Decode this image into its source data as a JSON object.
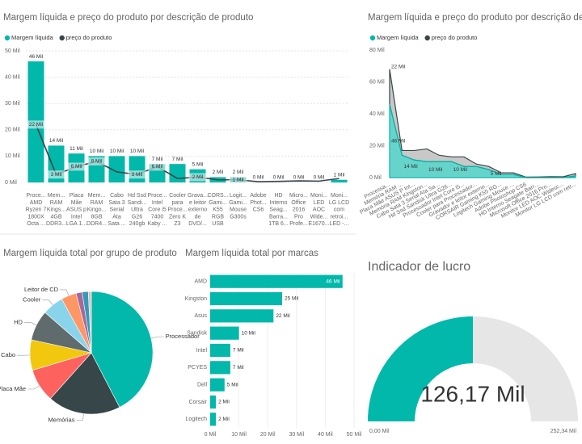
{
  "chart_data": [
    {
      "type": "bar",
      "title": "Margem líquida e preço do produto por descrição de produto",
      "legend": true,
      "grid": true,
      "categories": [
        "Proce...\nAMD\nRyzen 7\n1800X\nOcta ...",
        "Mem...\nRAM\nKings...\n4GB\nDDR3...",
        "Placa\nMãe\nASUS p\nIntel\nLGA 1...",
        "Mem...\nRAM\nKingo...\n8GB\nDDR4...",
        "Cabo\nSata 3\nSerial\nAta\nSata ...",
        "Hd Ssd\nSandi...\nUltra\nG26\n240gb",
        "Proce...\nIntel\nCore i5\n7400\nKaby ...",
        "Cooler\npara\nProce...\nZero K\nZ3",
        "Grava...\ne leitor\nexterno\nde\nDVD/...",
        "CORS...\nGami...\nK55\nRGB\nUSB",
        "Logit...\nGami...\nMouse\nG300s",
        "Adobe\nPhot...\nCS6",
        "HD\nInterno\nSeag...\nBarra...\n1TB 6...",
        "Micro...\nOffice\n2016\nPro\nProfe...",
        "Moni...\nLED\nAOC\nWide...\nE1670...",
        "Moni...\nLG LCD\ncom\nretroi...\nLED -..."
      ],
      "series": [
        {
          "name": "Margem líquida",
          "color": "#01B8AA",
          "values": [
            46000,
            14000,
            11000,
            10000,
            10000,
            10000,
            7000,
            7000,
            5000,
            2000,
            2000,
            0,
            0,
            0,
            0,
            1000
          ],
          "value_labels": [
            "46 Mil",
            "14 Mil",
            "11 Mil",
            "10 Mil",
            "10 Mil",
            "10 Mil",
            "7 Mil",
            "7 Mil",
            "5 Mil",
            "2 Mil",
            "2 Mil",
            "0 Mil",
            "0 Mil",
            "0 Mil",
            "0 Mil",
            "1 Mil"
          ]
        },
        {
          "name": "preço do produto",
          "color": "#374649",
          "type": "line",
          "values": [
            22000,
            3000,
            6000,
            8000,
            4000,
            3000,
            6000,
            1500,
            2000,
            1000,
            1000,
            300,
            400,
            600,
            500,
            1500
          ],
          "value_labels": [
            "22 Mil",
            "3 Mil",
            "6 Mil",
            "8 Mil",
            null,
            "3 Mil",
            "6 Mil",
            null,
            "2 Mil",
            null,
            "1 Mil",
            null,
            null,
            null,
            null,
            null
          ]
        }
      ],
      "ylim": [
        0,
        50000
      ],
      "yticks": [
        {
          "value": 0,
          "label": "0 Mil"
        },
        {
          "value": 10000,
          "label": "10 Mil"
        },
        {
          "value": 20000,
          "label": "20 Mil"
        },
        {
          "value": 30000,
          "label": "30 Mil"
        },
        {
          "value": 40000,
          "label": "40 Mil"
        },
        {
          "value": 50000,
          "label": "50 Mil"
        }
      ]
    },
    {
      "type": "area",
      "stacked": true,
      "title": "Margem líquida e preço do produto por descrição de produto",
      "legend": true,
      "categories": [
        "Processa...",
        "Memória RAM ...",
        "Placa Mãe ASUS P Int...",
        "Memória RAM Kingston...",
        "Cabo Sata 3 Serial Ata Sa...",
        "Hd Ssd Sandisk Ultra G26...",
        "Processador Intel Core i5...",
        "Cooler para Processador...",
        "Gravador e leitor externo...",
        "CORSAIR Gaming K55 RG...",
        "Logitech Gaming Mouse ...",
        "Adobe Photoshop CS6",
        "HD Interno Seagate Barr...",
        "Microsoft Office 2016 Pro...",
        "Monitor LED AOC Widesc...",
        "Monitor LG LCD com retr..."
      ],
      "series": [
        {
          "name": "Margem líquida",
          "color": "#01B8AA",
          "values": [
            46000,
            14000,
            11000,
            10000,
            10000,
            10000,
            7000,
            7000,
            5000,
            2000,
            2000,
            0,
            0,
            0,
            0,
            1000
          ],
          "value_labels": [
            "46 Mil",
            "14 Mil",
            null,
            "10 Mil",
            null,
            "10 Mil",
            null,
            null,
            "5 Mil",
            null,
            null,
            null,
            null,
            null,
            null,
            null
          ]
        },
        {
          "name": "preço do produto",
          "color": "#374649",
          "values": [
            22000,
            3000,
            6000,
            8000,
            4000,
            3000,
            6000,
            1500,
            2000,
            1000,
            1000,
            300,
            400,
            600,
            500,
            1500
          ],
          "value_labels": [
            "22 Mil",
            null,
            null,
            null,
            null,
            null,
            null,
            null,
            null,
            null,
            null,
            null,
            null,
            null,
            null,
            null
          ]
        }
      ],
      "ylim": [
        0,
        80000
      ],
      "yticks": [
        {
          "value": 0,
          "label": "0 Mil"
        },
        {
          "value": 20000,
          "label": "20 Mil"
        },
        {
          "value": 40000,
          "label": "40 Mil"
        },
        {
          "value": 60000,
          "label": "60 Mil"
        },
        {
          "value": 80000,
          "label": "80 Mil"
        }
      ]
    },
    {
      "type": "pie",
      "title": "Margem líquida total por grupo de produto",
      "categories": [
        "Processador",
        "Memórias",
        "Placa Mãe",
        "Cabo",
        "HD",
        "Cooler",
        "Leitor de CD",
        null,
        null,
        null
      ],
      "values": [
        53000,
        24000,
        11000,
        10000,
        10000,
        7000,
        5000,
        2000,
        2000,
        1000
      ],
      "colors": [
        "#01B8AA",
        "#374649",
        "#FD625E",
        "#F2C80F",
        "#5F6B6D",
        "#8AD4EB",
        "#FE9666",
        "#A66999",
        "#3599B8",
        "#DFBFBF"
      ]
    },
    {
      "type": "bar",
      "orientation": "horizontal",
      "title": "Margem líquida total por marcas",
      "color": "#01B8AA",
      "categories": [
        "AMD",
        "Kingston",
        "Asus",
        "Sandisk",
        "Intel",
        "PCYES",
        "Dell",
        "Corsair",
        "Logitech"
      ],
      "values": [
        46000,
        25000,
        22000,
        10000,
        7000,
        7000,
        5000,
        2000,
        2000
      ],
      "value_labels": [
        "46 Mil",
        "25 Mil",
        "22 Mil",
        "10 Mil",
        "7 Mil",
        "7 Mil",
        "5 Mil",
        "2 Mil",
        "2 Mil"
      ],
      "xlim": [
        0,
        50000
      ],
      "xticks": [
        {
          "value": 0,
          "label": "0 Mil"
        },
        {
          "value": 10000,
          "label": "10 Mil"
        },
        {
          "value": 20000,
          "label": "20 Mil"
        },
        {
          "value": 30000,
          "label": "30 Mil"
        },
        {
          "value": 40000,
          "label": "40 Mil"
        },
        {
          "value": 50000,
          "label": "50 Mil"
        }
      ]
    },
    {
      "type": "gauge",
      "title": "Indicador de lucro",
      "color": "#01B8AA",
      "track_color": "#E6E6E6",
      "value": 126170,
      "value_label": "126,17 Mil",
      "min": {
        "value": 0,
        "label": "0,00 Mil"
      },
      "max": {
        "value": 252340,
        "label": "252,34 Mil"
      }
    }
  ]
}
